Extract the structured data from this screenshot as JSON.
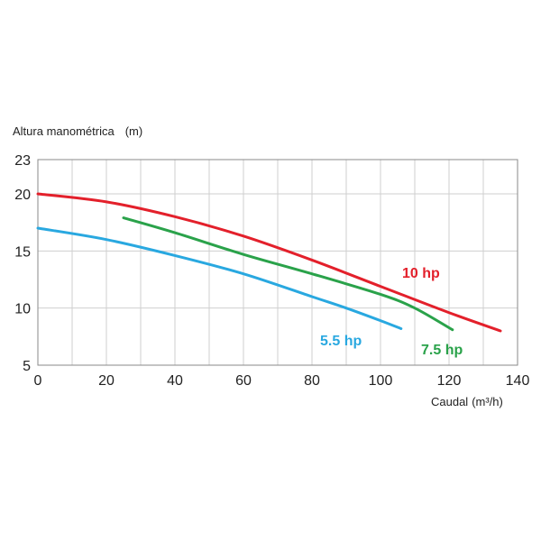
{
  "chart_data": {
    "type": "line",
    "title": "",
    "ylabel": "Altura manométrica",
    "ylabel_unit": "(m)",
    "xlabel": "Caudal",
    "xlabel_unit": "(m³/h)",
    "xlim": [
      0,
      140
    ],
    "ylim": [
      5,
      23
    ],
    "xticks": [
      "0",
      "20",
      "40",
      "60",
      "80",
      "100",
      "120",
      "140"
    ],
    "xtick_values": [
      0,
      20,
      40,
      60,
      80,
      100,
      120,
      140
    ],
    "yticks": [
      "5",
      "10",
      "15",
      "20",
      "23"
    ],
    "ytick_values": [
      5,
      10,
      15,
      20,
      23
    ],
    "x_gridlines": [
      0,
      10,
      20,
      30,
      40,
      50,
      60,
      70,
      80,
      90,
      100,
      110,
      120,
      130,
      140
    ],
    "y_gridlines": [
      5,
      10,
      15,
      20,
      23
    ],
    "grid": true,
    "series": [
      {
        "name": "10 hp",
        "color": "#e3202b",
        "x": [
          0,
          20,
          40,
          60,
          80,
          100,
          120,
          135
        ],
        "y": [
          20.0,
          19.3,
          18.0,
          16.3,
          14.2,
          11.9,
          9.6,
          8.0
        ]
      },
      {
        "name": "7.5 hp",
        "color": "#2aa24a",
        "x": [
          25,
          40,
          60,
          80,
          100,
          110,
          121
        ],
        "y": [
          17.9,
          16.6,
          14.7,
          13.0,
          11.2,
          10.0,
          8.1
        ]
      },
      {
        "name": "5.5 hp",
        "color": "#29a8e0",
        "x": [
          0,
          20,
          40,
          60,
          80,
          90,
          100,
          106
        ],
        "y": [
          17.0,
          16.0,
          14.6,
          13.0,
          11.0,
          10.0,
          8.9,
          8.2
        ]
      }
    ]
  }
}
